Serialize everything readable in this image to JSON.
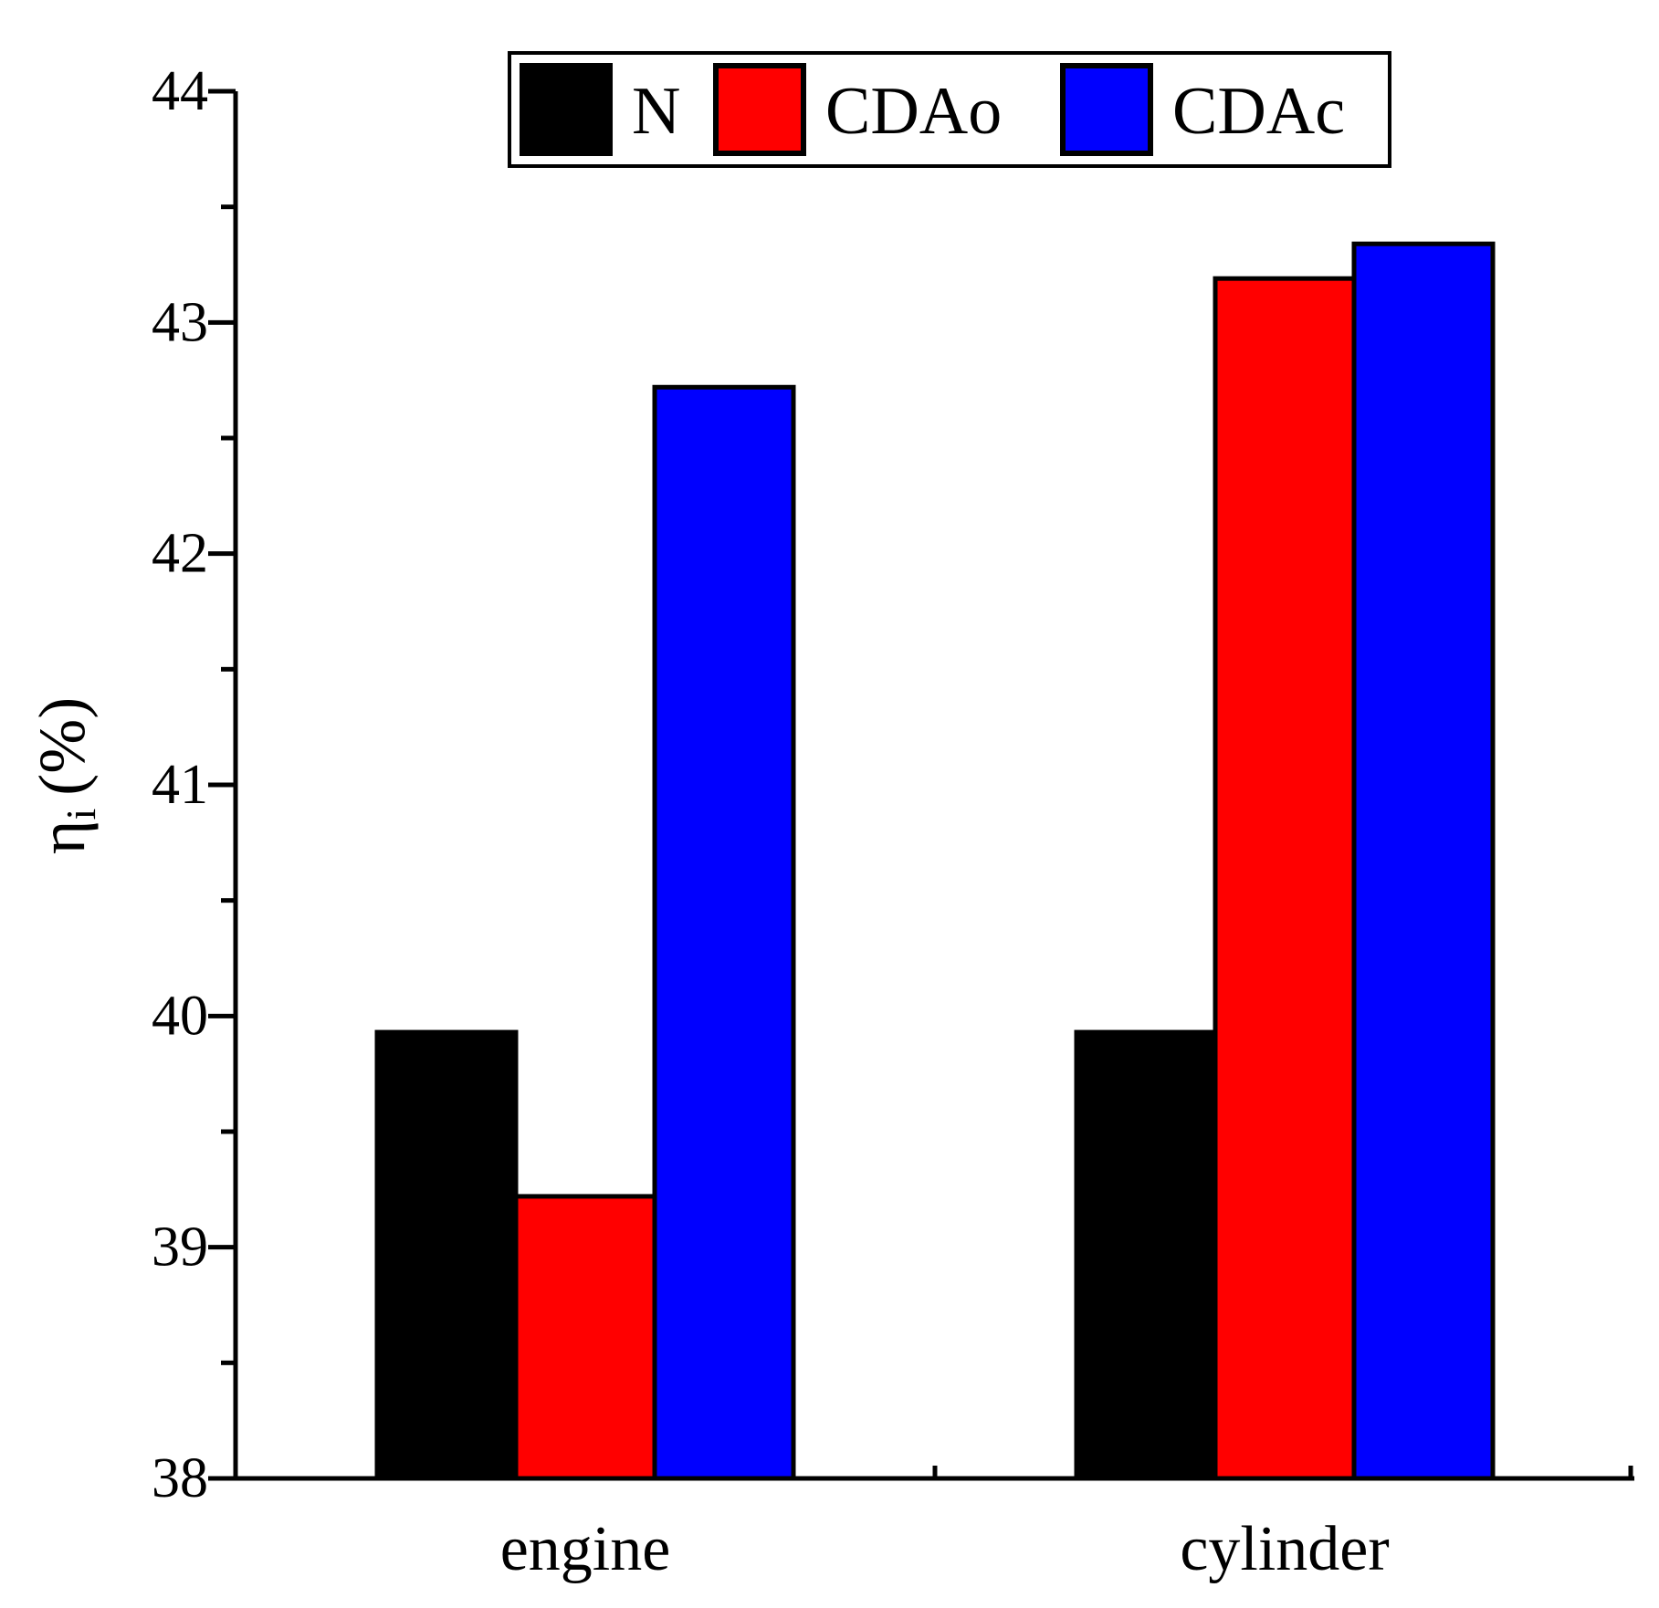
{
  "chart_data": {
    "type": "bar",
    "title": "",
    "xlabel": "",
    "ylabel": "η",
    "ylabel_subscript": "i",
    "ylabel_unit": "(%)",
    "ylim": [
      38,
      44
    ],
    "yticks": [
      "38",
      "39",
      "40",
      "41",
      "42",
      "43",
      "44"
    ],
    "categories": [
      "engine",
      "cylinder"
    ],
    "series": [
      {
        "name": "N",
        "color": "#000000",
        "values": [
          39.93,
          39.93
        ]
      },
      {
        "name": "CDAo",
        "color": "#ff0000",
        "values": [
          39.22,
          43.19
        ]
      },
      {
        "name": "CDAc",
        "color": "#0000ff",
        "values": [
          42.72,
          43.34
        ]
      }
    ],
    "legend_position": "top",
    "grid": false
  }
}
